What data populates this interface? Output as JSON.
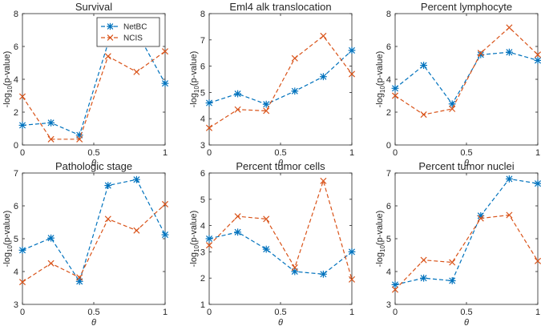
{
  "chart_data": [
    {
      "type": "line",
      "title": "Survival",
      "xlabel": "θ",
      "ylabel": "-log10(p-value)",
      "x": [
        0,
        0.2,
        0.4,
        0.6,
        0.8,
        1
      ],
      "xlim": [
        0,
        1
      ],
      "ylim": [
        0,
        8
      ],
      "xticks": [
        0,
        0.5,
        1
      ],
      "yticks": [
        0,
        2,
        4,
        6,
        8
      ],
      "series": [
        {
          "name": "NetBC",
          "color": "#0072BD",
          "marker": "asterisk",
          "values": [
            1.2,
            1.35,
            0.6,
            6.2,
            6.9,
            3.75
          ]
        },
        {
          "name": "NCIS",
          "color": "#D95319",
          "marker": "x",
          "values": [
            2.95,
            0.35,
            0.35,
            5.4,
            4.45,
            5.7
          ]
        }
      ],
      "legend": {
        "position": "top-right",
        "entries": [
          "NetBC",
          "NCIS"
        ]
      }
    },
    {
      "type": "line",
      "title": "Eml4 alk translocation",
      "xlabel": "θ",
      "ylabel": "-log10(p-value)",
      "x": [
        0,
        0.2,
        0.4,
        0.6,
        0.8,
        1
      ],
      "xlim": [
        0,
        1
      ],
      "ylim": [
        3,
        8
      ],
      "xticks": [
        0,
        0.5,
        1
      ],
      "yticks": [
        3,
        4,
        5,
        6,
        7,
        8
      ],
      "series": [
        {
          "name": "NetBC",
          "color": "#0072BD",
          "marker": "asterisk",
          "values": [
            4.6,
            4.95,
            4.55,
            5.05,
            5.6,
            6.6
          ]
        },
        {
          "name": "NCIS",
          "color": "#D95319",
          "marker": "x",
          "values": [
            3.65,
            4.35,
            4.3,
            6.3,
            7.15,
            5.7
          ]
        }
      ]
    },
    {
      "type": "line",
      "title": "Percent lymphocyte",
      "xlabel": "θ",
      "ylabel": "-log10(p-value)",
      "x": [
        0,
        0.2,
        0.4,
        0.6,
        0.8,
        1
      ],
      "xlim": [
        0,
        1
      ],
      "ylim": [
        0,
        8
      ],
      "xticks": [
        0,
        0.5,
        1
      ],
      "yticks": [
        0,
        2,
        4,
        6,
        8
      ],
      "series": [
        {
          "name": "NetBC",
          "color": "#0072BD",
          "marker": "asterisk",
          "values": [
            3.45,
            4.85,
            2.5,
            5.5,
            5.65,
            5.15
          ]
        },
        {
          "name": "NCIS",
          "color": "#D95319",
          "marker": "x",
          "values": [
            3.0,
            1.85,
            2.2,
            5.6,
            7.15,
            5.5
          ]
        }
      ]
    },
    {
      "type": "line",
      "title": "Pathologic stage",
      "xlabel": "θ",
      "ylabel": "-log10(p-value)",
      "x": [
        0,
        0.2,
        0.4,
        0.6,
        0.8,
        1
      ],
      "xlim": [
        0,
        1
      ],
      "ylim": [
        3,
        7
      ],
      "xticks": [
        0,
        0.5,
        1
      ],
      "yticks": [
        3,
        4,
        5,
        6,
        7
      ],
      "series": [
        {
          "name": "NetBC",
          "color": "#0072BD",
          "marker": "asterisk",
          "values": [
            4.65,
            5.02,
            3.7,
            6.62,
            6.8,
            5.12
          ]
        },
        {
          "name": "NCIS",
          "color": "#D95319",
          "marker": "x",
          "values": [
            3.68,
            4.25,
            3.82,
            5.6,
            5.25,
            6.05
          ]
        }
      ]
    },
    {
      "type": "line",
      "title": "Percent tumor cells",
      "xlabel": "θ",
      "ylabel": "-log10(p-value)",
      "x": [
        0,
        0.2,
        0.4,
        0.6,
        0.8,
        1
      ],
      "xlim": [
        0,
        1
      ],
      "ylim": [
        1,
        6
      ],
      "xticks": [
        0,
        0.5,
        1
      ],
      "yticks": [
        1,
        2,
        3,
        4,
        5,
        6
      ],
      "series": [
        {
          "name": "NetBC",
          "color": "#0072BD",
          "marker": "asterisk",
          "values": [
            3.5,
            3.75,
            3.1,
            2.25,
            2.15,
            3.0
          ]
        },
        {
          "name": "NCIS",
          "color": "#D95319",
          "marker": "x",
          "values": [
            3.25,
            4.35,
            4.25,
            2.4,
            5.7,
            1.95
          ]
        }
      ]
    },
    {
      "type": "line",
      "title": "Percent tumor nuclei",
      "xlabel": "θ",
      "ylabel": "-log10(p-value)",
      "x": [
        0,
        0.2,
        0.4,
        0.6,
        0.8,
        1
      ],
      "xlim": [
        0,
        1
      ],
      "ylim": [
        3,
        7
      ],
      "xticks": [
        0,
        0.5,
        1
      ],
      "yticks": [
        3,
        4,
        5,
        6,
        7
      ],
      "series": [
        {
          "name": "NetBC",
          "color": "#0072BD",
          "marker": "asterisk",
          "values": [
            3.6,
            3.8,
            3.72,
            5.7,
            6.82,
            6.68
          ]
        },
        {
          "name": "NCIS",
          "color": "#D95319",
          "marker": "x",
          "values": [
            3.45,
            4.35,
            4.28,
            5.62,
            5.72,
            4.32
          ]
        }
      ]
    }
  ]
}
